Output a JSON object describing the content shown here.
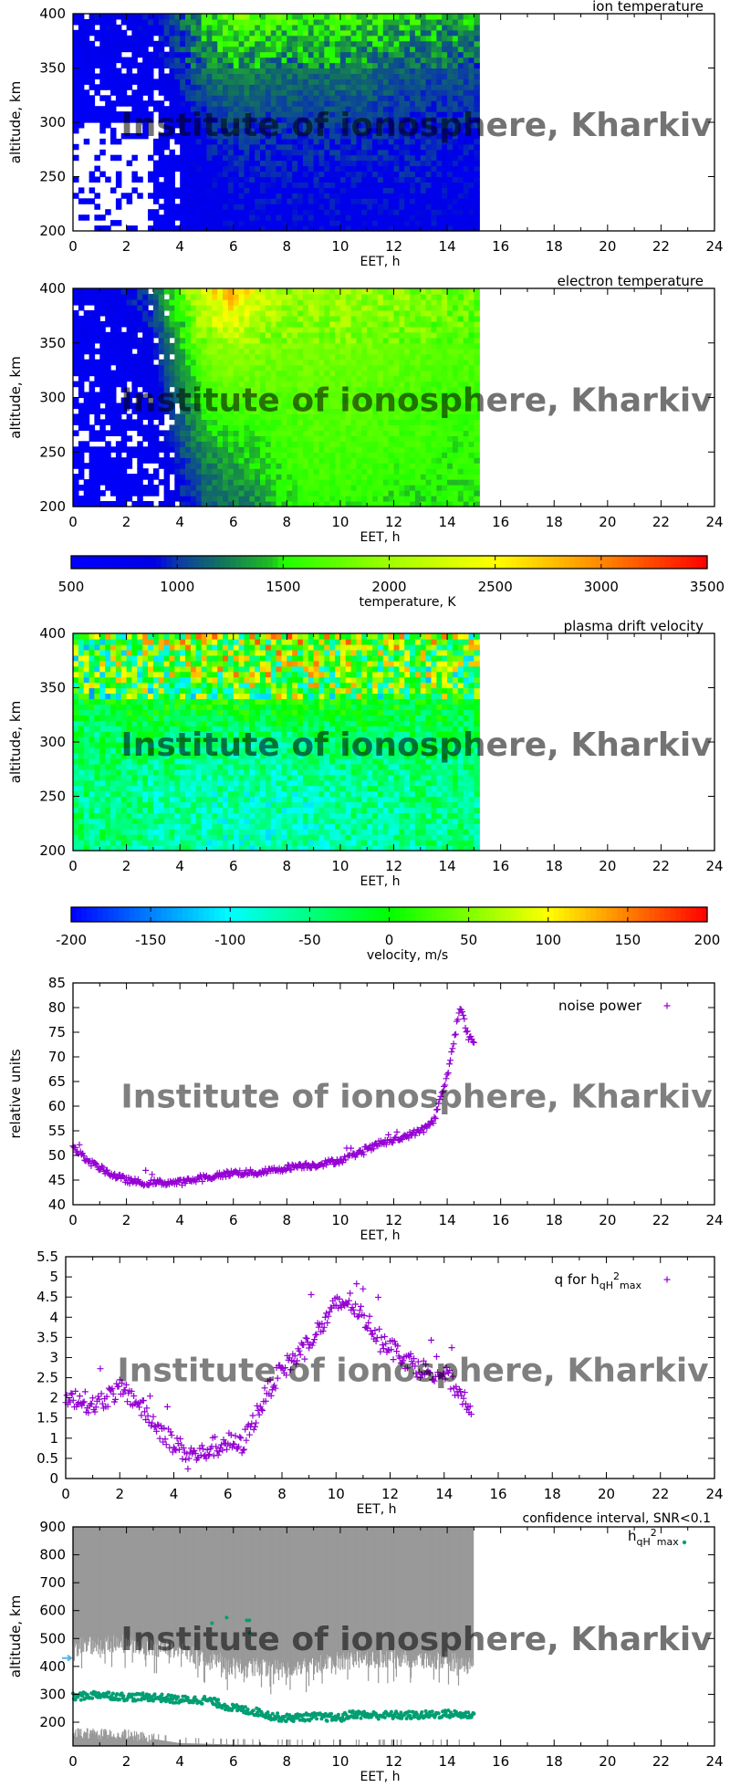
{
  "watermark": "Institute of ionosphere, Kharkiv",
  "chart_data": [
    {
      "type": "heatmap",
      "title": "ion temperature",
      "xlabel": "EET, h",
      "ylabel": "altitude, km",
      "xlim": [
        0,
        24
      ],
      "ylim": [
        200,
        400
      ],
      "xticks": [
        "0",
        "2",
        "4",
        "6",
        "8",
        "10",
        "12",
        "14",
        "16",
        "18",
        "20",
        "22",
        "24"
      ],
      "yticks": [
        "200",
        "250",
        "300",
        "350",
        "400"
      ],
      "hours": [
        0,
        1,
        2,
        3,
        4,
        5,
        6,
        7,
        8,
        9,
        10,
        11,
        12,
        13,
        14,
        15
      ],
      "altitudes": [
        400,
        350,
        300,
        250,
        200
      ],
      "values": [
        [
          800,
          850,
          850,
          900,
          1100,
          1500,
          1800,
          1700,
          1600,
          1600,
          1600,
          1600,
          1500,
          1500,
          1400,
          1400
        ],
        [
          700,
          700,
          750,
          800,
          1000,
          1200,
          1300,
          1250,
          1200,
          1200,
          1250,
          1200,
          1150,
          1100,
          1100,
          1100
        ],
        [
          650,
          650,
          650,
          700,
          800,
          950,
          1050,
          1000,
          1000,
          1000,
          1000,
          1000,
          950,
          950,
          950,
          950
        ],
        [
          null,
          null,
          null,
          650,
          750,
          850,
          900,
          900,
          900,
          900,
          900,
          900,
          900,
          900,
          850,
          850
        ],
        [
          650,
          null,
          650,
          650,
          700,
          800,
          850,
          850,
          850,
          850,
          850,
          850,
          850,
          850,
          850,
          850
        ]
      ],
      "colorscale": "temperature"
    },
    {
      "type": "heatmap",
      "title": "electron temperature",
      "xlabel": "EET, h",
      "ylabel": "altitude, km",
      "xlim": [
        0,
        24
      ],
      "ylim": [
        200,
        400
      ],
      "xticks": [
        "0",
        "2",
        "4",
        "6",
        "8",
        "10",
        "12",
        "14",
        "16",
        "18",
        "20",
        "22",
        "24"
      ],
      "yticks": [
        "200",
        "250",
        "300",
        "350",
        "400"
      ],
      "hours": [
        0,
        1,
        2,
        3,
        4,
        5,
        6,
        7,
        8,
        9,
        10,
        11,
        12,
        13,
        14,
        15
      ],
      "altitudes": [
        400,
        350,
        300,
        250,
        200
      ],
      "values": [
        [
          800,
          800,
          900,
          1100,
          1700,
          2500,
          2800,
          2300,
          2000,
          2000,
          2100,
          2000,
          1900,
          1900,
          1800,
          1800
        ],
        [
          700,
          700,
          750,
          900,
          1400,
          1900,
          2000,
          1900,
          1850,
          1850,
          1850,
          1850,
          1800,
          1750,
          1700,
          1700
        ],
        [
          650,
          650,
          700,
          800,
          1200,
          1600,
          1700,
          1700,
          1700,
          1750,
          1750,
          1700,
          1700,
          1650,
          1600,
          1600
        ],
        [
          600,
          600,
          650,
          750,
          1000,
          1300,
          1400,
          1500,
          1600,
          1650,
          1650,
          1650,
          1600,
          1600,
          1550,
          1550
        ],
        [
          600,
          600,
          650,
          700,
          900,
          1100,
          1200,
          1300,
          1500,
          1550,
          1550,
          1550,
          1500,
          1500,
          1500,
          1500
        ]
      ],
      "colorscale": "temperature"
    },
    {
      "type": "colorbar",
      "label": "temperature, K",
      "range": [
        500,
        3500
      ],
      "ticks": [
        "500",
        "1000",
        "1500",
        "2000",
        "2500",
        "3000",
        "3500"
      ],
      "stops": [
        [
          500,
          "#0000ff"
        ],
        [
          900,
          "#0000e6"
        ],
        [
          1000,
          "#0a3aa8"
        ],
        [
          1200,
          "#127060"
        ],
        [
          1450,
          "#20c020"
        ],
        [
          1500,
          "#20ff00"
        ],
        [
          2000,
          "#a0ff00"
        ],
        [
          2500,
          "#ffff00"
        ],
        [
          3000,
          "#ff8800"
        ],
        [
          3500,
          "#ff0000"
        ]
      ]
    },
    {
      "type": "heatmap",
      "title": "plasma drift velocity",
      "xlabel": "EET, h",
      "ylabel": "altitude, km",
      "xlim": [
        0,
        24
      ],
      "ylim": [
        200,
        400
      ],
      "xticks": [
        "0",
        "2",
        "4",
        "6",
        "8",
        "10",
        "12",
        "14",
        "16",
        "18",
        "20",
        "22",
        "24"
      ],
      "yticks": [
        "200",
        "250",
        "300",
        "350",
        "400"
      ],
      "hours": [
        0,
        1,
        2,
        3,
        4,
        5,
        6,
        7,
        8,
        9,
        10,
        11,
        12,
        13,
        14,
        15
      ],
      "altitudes": [
        400,
        350,
        300,
        250,
        200
      ],
      "values": [
        [
          0,
          10,
          20,
          20,
          30,
          40,
          40,
          50,
          50,
          40,
          40,
          40,
          40,
          30,
          30,
          20
        ],
        [
          -20,
          -10,
          0,
          0,
          10,
          20,
          20,
          20,
          20,
          20,
          10,
          10,
          10,
          0,
          0,
          0
        ],
        [
          -40,
          -40,
          -40,
          -40,
          -40,
          -50,
          -50,
          -50,
          -50,
          -50,
          -40,
          -40,
          -40,
          -40,
          -40,
          -40
        ],
        [
          -50,
          -50,
          -50,
          -60,
          -60,
          -70,
          -70,
          -70,
          -70,
          -70,
          -60,
          -60,
          -60,
          -50,
          -50,
          -50
        ],
        [
          -40,
          -40,
          -50,
          -60,
          -60,
          -70,
          -80,
          -80,
          -70,
          -70,
          -60,
          -60,
          -60,
          -50,
          -50,
          -50
        ]
      ],
      "colorscale": "velocity"
    },
    {
      "type": "colorbar",
      "label": "velocity, m/s",
      "range": [
        -200,
        200
      ],
      "ticks": [
        "-200",
        "-150",
        "-100",
        "-50",
        "0",
        "50",
        "100",
        "150",
        "200"
      ],
      "stops": [
        [
          -200,
          "#0000ff"
        ],
        [
          -100,
          "#00ffff"
        ],
        [
          0,
          "#00ff00"
        ],
        [
          100,
          "#ffff00"
        ],
        [
          200,
          "#ff0000"
        ]
      ]
    },
    {
      "type": "scatter",
      "xlabel": "EET, h",
      "ylabel": "relative units",
      "xlim": [
        0,
        24
      ],
      "ylim": [
        40,
        85
      ],
      "xticks": [
        "0",
        "2",
        "4",
        "6",
        "8",
        "10",
        "12",
        "14",
        "16",
        "18",
        "20",
        "22",
        "24"
      ],
      "yticks": [
        "40",
        "45",
        "50",
        "55",
        "60",
        "65",
        "70",
        "75",
        "80",
        "85"
      ],
      "legend": "top-right",
      "series": [
        {
          "name": "noise power",
          "color": "#9400d3",
          "x": [
            0,
            0.5,
            1,
            1.5,
            2,
            2.5,
            3,
            3.5,
            4,
            4.5,
            5,
            5.5,
            6,
            6.5,
            7,
            7.5,
            8,
            8.5,
            9,
            9.5,
            10,
            10.5,
            11,
            11.5,
            12,
            12.5,
            13,
            13.5,
            14,
            14.3,
            14.5,
            14.8,
            15
          ],
          "y": [
            52,
            49,
            47.5,
            46,
            45,
            44.5,
            44.5,
            44.5,
            44.5,
            45,
            45.5,
            46,
            46.5,
            46.5,
            46.5,
            47,
            47.5,
            48,
            48,
            48.5,
            49,
            50,
            51,
            52.5,
            53,
            54,
            55,
            57,
            66,
            75,
            80,
            74,
            73
          ]
        }
      ]
    },
    {
      "type": "scatter",
      "xlabel": "EET, h",
      "ylabel": "",
      "xlim": [
        0,
        24
      ],
      "ylim": [
        0,
        5.5
      ],
      "xticks": [
        "0",
        "2",
        "4",
        "6",
        "8",
        "10",
        "12",
        "14",
        "16",
        "18",
        "20",
        "22",
        "24"
      ],
      "yticks": [
        "0",
        "0.5",
        "1",
        "1.5",
        "2",
        "2.5",
        "3",
        "3.5",
        "4",
        "4.5",
        "5",
        "5.5"
      ],
      "legend": "top-right",
      "series": [
        {
          "name": "q for hqH2max",
          "color": "#9400d3",
          "x": [
            0,
            0.5,
            1,
            1.5,
            2,
            2.5,
            3,
            3.5,
            4,
            4.5,
            5,
            5.5,
            6,
            6.5,
            7,
            7.5,
            8,
            8.5,
            9,
            9.5,
            10,
            10.5,
            11,
            11.5,
            12,
            12.5,
            13,
            13.5,
            14,
            14.5,
            15
          ],
          "y": [
            2.0,
            2.0,
            1.8,
            2.0,
            2.2,
            2.0,
            1.6,
            1.2,
            0.9,
            0.6,
            0.6,
            0.8,
            0.9,
            0.8,
            1.5,
            2.2,
            2.7,
            3.0,
            3.4,
            3.8,
            4.3,
            4.4,
            4.0,
            3.6,
            3.3,
            3.0,
            2.8,
            2.6,
            2.6,
            2.2,
            1.8
          ]
        }
      ]
    },
    {
      "type": "scatter",
      "xlabel": "EET, h",
      "ylabel": "altitude, km",
      "xlim": [
        0,
        24
      ],
      "ylim": [
        115,
        900
      ],
      "xticks": [
        "0",
        "2",
        "4",
        "6",
        "8",
        "10",
        "12",
        "14",
        "16",
        "18",
        "20",
        "22",
        "24"
      ],
      "yticks": [
        "200",
        "300",
        "400",
        "500",
        "600",
        "700",
        "800",
        "900"
      ],
      "legend": "top-right",
      "confidence_interval": {
        "name": "confidence interval, SNR<0.1",
        "color": "#999999",
        "x": [
          0,
          2,
          4,
          6,
          8,
          10,
          12,
          14,
          15
        ],
        "upper_lower_bound": [
          470,
          480,
          460,
          400,
          390,
          420,
          430,
          420,
          400
        ],
        "bottom_band_top": [
          160,
          155,
          125,
          120,
          118,
          118,
          118,
          118,
          118
        ]
      },
      "series": [
        {
          "name": "hqH2max",
          "color": "#009e73",
          "x": [
            0,
            1,
            2,
            3,
            4,
            5,
            5.5,
            6,
            7,
            7.5,
            8,
            9,
            10,
            10.5,
            11,
            12,
            13,
            14,
            15
          ],
          "y": [
            290,
            300,
            290,
            290,
            280,
            280,
            265,
            250,
            235,
            220,
            215,
            220,
            215,
            230,
            225,
            225,
            225,
            230,
            225
          ]
        }
      ],
      "marker_arrow": {
        "altitude": 430,
        "color": "#56b4e9"
      }
    }
  ]
}
